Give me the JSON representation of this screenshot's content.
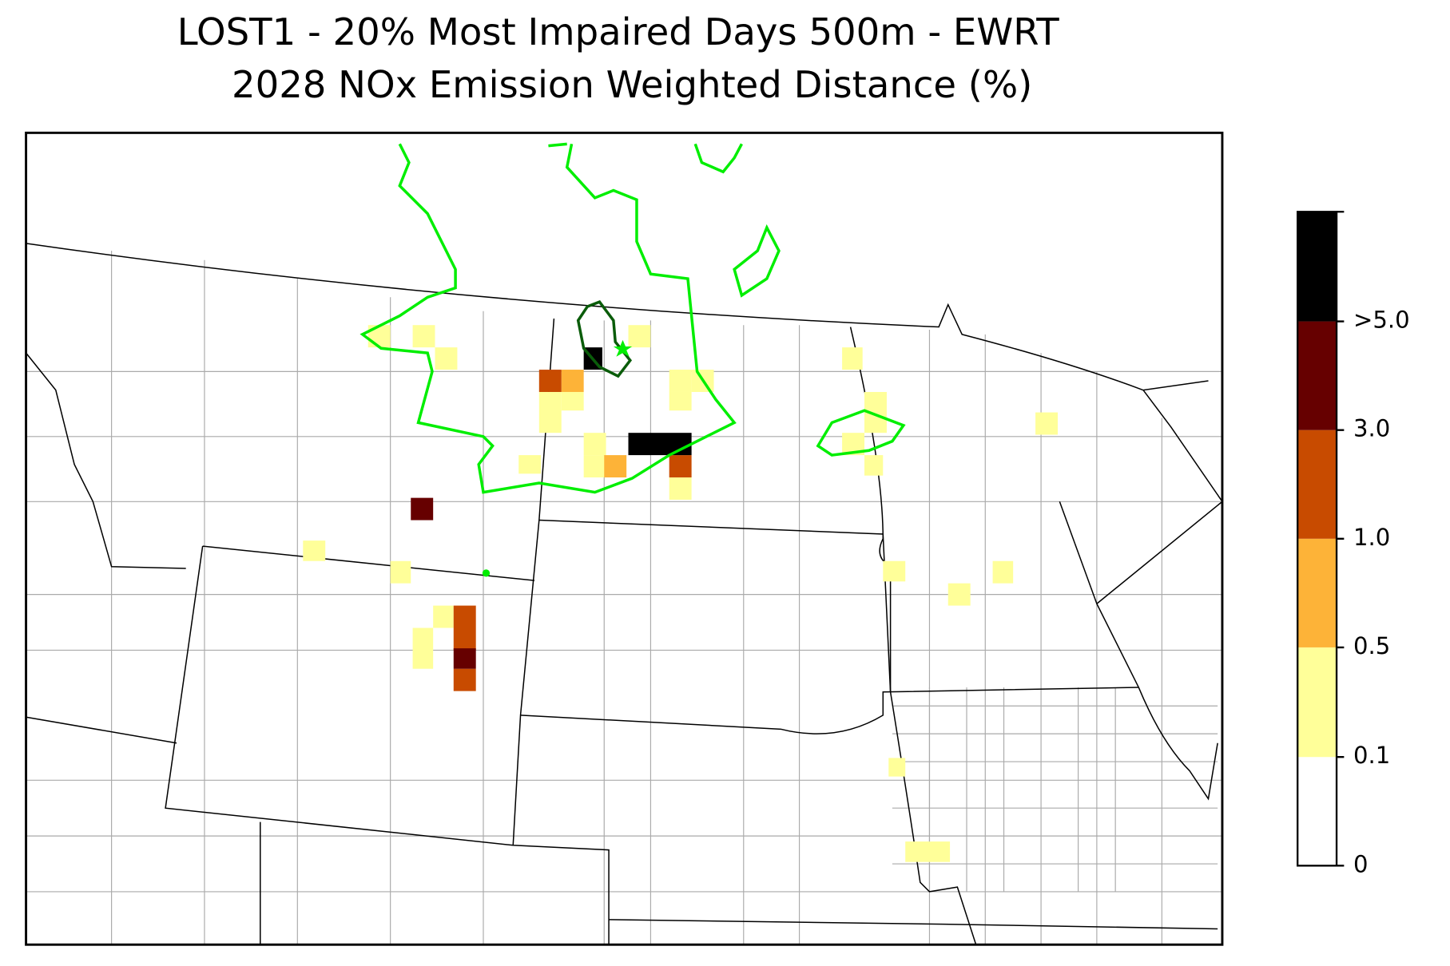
{
  "title": {
    "line1": "LOST1 - 20% Most Impaired Days 500m - EWRT",
    "line2": "2028 NOx Emission Weighted Distance (%)"
  },
  "colorbar": {
    "labels": [
      "0",
      "0.1",
      "0.5",
      "1.0",
      "3.0",
      ">5.0"
    ]
  }
}
